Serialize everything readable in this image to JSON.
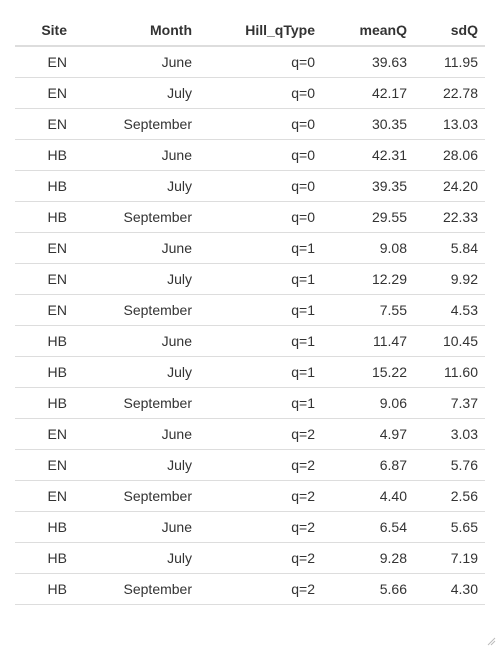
{
  "table": {
    "columns": [
      "Site",
      "Month",
      "Hill_qType",
      "meanQ",
      "sdQ"
    ],
    "rows": [
      [
        "EN",
        "June",
        "q=0",
        "39.63",
        "11.95"
      ],
      [
        "EN",
        "July",
        "q=0",
        "42.17",
        "22.78"
      ],
      [
        "EN",
        "September",
        "q=0",
        "30.35",
        "13.03"
      ],
      [
        "HB",
        "June",
        "q=0",
        "42.31",
        "28.06"
      ],
      [
        "HB",
        "July",
        "q=0",
        "39.35",
        "24.20"
      ],
      [
        "HB",
        "September",
        "q=0",
        "29.55",
        "22.33"
      ],
      [
        "EN",
        "June",
        "q=1",
        "9.08",
        "5.84"
      ],
      [
        "EN",
        "July",
        "q=1",
        "12.29",
        "9.92"
      ],
      [
        "EN",
        "September",
        "q=1",
        "7.55",
        "4.53"
      ],
      [
        "HB",
        "June",
        "q=1",
        "11.47",
        "10.45"
      ],
      [
        "HB",
        "July",
        "q=1",
        "15.22",
        "11.60"
      ],
      [
        "HB",
        "September",
        "q=1",
        "9.06",
        "7.37"
      ],
      [
        "EN",
        "June",
        "q=2",
        "4.97",
        "3.03"
      ],
      [
        "EN",
        "July",
        "q=2",
        "6.87",
        "5.76"
      ],
      [
        "EN",
        "September",
        "q=2",
        "4.40",
        "2.56"
      ],
      [
        "HB",
        "June",
        "q=2",
        "6.54",
        "5.65"
      ],
      [
        "HB",
        "July",
        "q=2",
        "9.28",
        "7.19"
      ],
      [
        "HB",
        "September",
        "q=2",
        "5.66",
        "4.30"
      ]
    ]
  },
  "colors": {
    "text": "#333333",
    "border": "#dddddd",
    "background": "#ffffff"
  },
  "icons": {
    "resize_handle": "resize-grip-icon"
  }
}
